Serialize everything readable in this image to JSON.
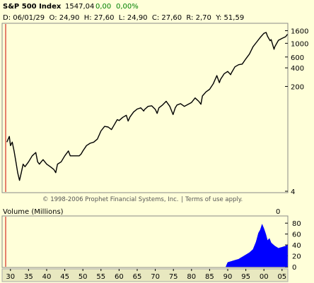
{
  "header": {
    "symbol": "S&P 500 Index",
    "last": "1547,04",
    "change": "0,00",
    "change_pct": "0,00%",
    "info_line": "D: 06/01/29  O: 24,90  H: 27,60  L: 24,90  C: 27,60  R: 2,70  Y: 51,59"
  },
  "footer": {
    "copyright": "© 1998-2006 Prophet Financial Systems, Inc.",
    "terms": "Terms of use apply."
  },
  "volume_panel": {
    "title": "Volume (Millions)",
    "current": "0"
  },
  "colors": {
    "background": "#ffffd9",
    "price_line": "#000000",
    "volume_fill": "#0000ff",
    "positive_text": "#008000",
    "cursor_line": "#cc0000",
    "scroll_track": "#e8e8c0"
  },
  "chart_data": [
    {
      "type": "line",
      "scale": "log",
      "x_tick_labels": [
        "30",
        "35",
        "40",
        "45",
        "50",
        "55",
        "60",
        "65",
        "70",
        "75",
        "80",
        "85",
        "90",
        "95",
        "00",
        "05"
      ],
      "y_tick_labels": [
        "1600",
        "1000",
        "600",
        "400",
        "200",
        "4"
      ],
      "y_ticks": [
        1600,
        1000,
        600,
        400,
        200,
        4
      ],
      "xlim": [
        1927.7,
        2006.6
      ],
      "ylim": [
        4,
        1950
      ],
      "x": [
        1929.0,
        1929.7,
        1930.0,
        1930.5,
        1931.0,
        1931.5,
        1932.0,
        1932.5,
        1933.0,
        1933.5,
        1934.0,
        1935.0,
        1936.0,
        1937.0,
        1937.5,
        1938.0,
        1938.5,
        1939.0,
        1940.0,
        1941.0,
        1942.0,
        1942.5,
        1943.0,
        1944.0,
        1945.0,
        1946.0,
        1946.5,
        1947.0,
        1948.0,
        1949.0,
        1949.5,
        1950.0,
        1951.0,
        1952.0,
        1953.0,
        1954.0,
        1955.0,
        1956.0,
        1957.0,
        1957.9,
        1958.5,
        1959.5,
        1960.0,
        1961.0,
        1962.0,
        1962.5,
        1963.0,
        1964.0,
        1965.0,
        1966.0,
        1966.8,
        1967.0,
        1968.0,
        1969.0,
        1970.0,
        1970.5,
        1971.0,
        1972.0,
        1973.0,
        1974.0,
        1974.9,
        1975.5,
        1976.0,
        1977.0,
        1978.0,
        1979.0,
        1980.0,
        1981.0,
        1982.0,
        1982.6,
        1983.0,
        1984.0,
        1985.0,
        1986.0,
        1987.0,
        1987.7,
        1988.0,
        1989.0,
        1990.0,
        1990.8,
        1991.0,
        1992.0,
        1993.0,
        1994.0,
        1995.0,
        1996.0,
        1997.0,
        1998.0,
        1999.0,
        2000.0,
        2000.6,
        2001.0,
        2001.7,
        2002.0,
        2002.8,
        2003.0,
        2004.0,
        2005.0,
        2006.0,
        2006.5
      ],
      "y": [
        25,
        31,
        22,
        25,
        18,
        12,
        8,
        6,
        8,
        11,
        10,
        12,
        15,
        17,
        12,
        11,
        12,
        13,
        11,
        10,
        9,
        8,
        11,
        12,
        15,
        18,
        15,
        15,
        15,
        15,
        16,
        18,
        22,
        24,
        25,
        28,
        38,
        45,
        44,
        40,
        46,
        58,
        56,
        63,
        68,
        55,
        64,
        77,
        86,
        90,
        80,
        84,
        95,
        97,
        85,
        73,
        90,
        100,
        115,
        95,
        70,
        90,
        100,
        105,
        95,
        102,
        110,
        130,
        115,
        103,
        140,
        163,
        180,
        220,
        300,
        230,
        260,
        320,
        350,
        310,
        330,
        415,
        450,
        460,
        560,
        670,
        880,
        1050,
        1250,
        1450,
        1500,
        1300,
        1100,
        1150,
        800,
        880,
        1120,
        1200,
        1280,
        1400
      ]
    },
    {
      "type": "area",
      "title": "Volume (Millions)",
      "x_tick_labels": [
        "30",
        "35",
        "40",
        "45",
        "50",
        "55",
        "60",
        "65",
        "70",
        "75",
        "80",
        "85",
        "90",
        "95",
        "00",
        "05"
      ],
      "y_tick_labels": [
        "80",
        "60",
        "40",
        "20",
        "0"
      ],
      "y_ticks": [
        80,
        60,
        40,
        20,
        0
      ],
      "xlim": [
        1927.7,
        2006.6
      ],
      "ylim": [
        0,
        88
      ],
      "x": [
        1989.5,
        1990.0,
        1991.0,
        1992.0,
        1993.0,
        1993.5,
        1994.0,
        1995.0,
        1996.0,
        1997.0,
        1997.8,
        1998.0,
        1998.5,
        1999.0,
        1999.5,
        2000.0,
        2000.5,
        2001.0,
        2001.5,
        2002.0,
        2003.0,
        2004.0,
        2005.0,
        2006.0,
        2006.5
      ],
      "y": [
        0,
        8,
        10,
        12,
        14,
        16,
        18,
        22,
        26,
        32,
        45,
        50,
        62,
        68,
        78,
        70,
        60,
        48,
        52,
        44,
        38,
        34,
        36,
        38,
        40
      ]
    }
  ]
}
